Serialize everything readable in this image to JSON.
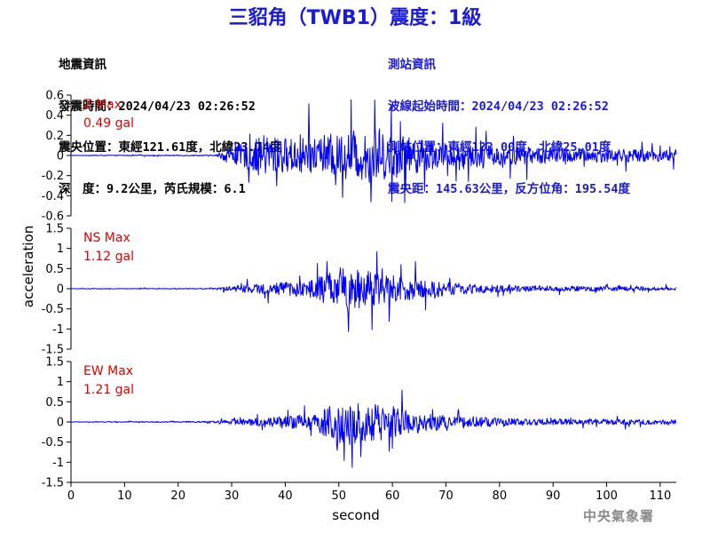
{
  "header": {
    "title": "三貂角（TWB1）震度：1級"
  },
  "quake_info": {
    "heading": "地震資訊",
    "origin_time": "發震時間：2024/04/23 02:26:52",
    "epicenter": "震央位置：東經121.61度，北緯23.74度",
    "depth_magnitude": "深　度：9.2公里，芮氏規模：6.1"
  },
  "station_info": {
    "heading": "測站資訊",
    "wave_start": "波線起始時間：2024/04/23 02:26:52",
    "station_location": "測站位置：東經122.00度，北緯25.01度",
    "distance": "震央距：145.63公里，反方位角：195.54度"
  },
  "footer": {
    "agency": "中央氣象署"
  },
  "colors": {
    "title": "#1a1adc",
    "station_text": "#1a1adc",
    "trace": "#0000ff",
    "max_label": "#e00000",
    "watermark": "#8a8a8a"
  },
  "chart_data": {
    "type": "line",
    "xlabel": "second",
    "ylabel": "acceleration",
    "xlim": [
      0,
      113
    ],
    "xticks": [
      0,
      10,
      20,
      30,
      40,
      50,
      60,
      70,
      80,
      90,
      100,
      110
    ],
    "grid": false,
    "panels": [
      {
        "name": "Z",
        "max_label": "Z Max",
        "max_value": "0.49 gal",
        "ylim": [
          -0.6,
          0.6
        ],
        "yticks": [
          -0.6,
          -0.4,
          -0.2,
          0,
          0.2,
          0.4,
          0.6
        ],
        "ytick_labels": [
          "-0.6",
          "-0.4",
          "-0.2",
          "0",
          "0.2",
          "0.4",
          "0.6"
        ],
        "quiet_until": 27,
        "onset": 30,
        "peak_time": 56,
        "envelope": [
          [
            0,
            0.005
          ],
          [
            27,
            0.01
          ],
          [
            29,
            0.12
          ],
          [
            33,
            0.25
          ],
          [
            36,
            0.38
          ],
          [
            40,
            0.3
          ],
          [
            45,
            0.35
          ],
          [
            50,
            0.38
          ],
          [
            53,
            0.45
          ],
          [
            56,
            0.47
          ],
          [
            60,
            0.38
          ],
          [
            65,
            0.3
          ],
          [
            70,
            0.22
          ],
          [
            80,
            0.18
          ],
          [
            90,
            0.14
          ],
          [
            100,
            0.12
          ],
          [
            113,
            0.1
          ]
        ]
      },
      {
        "name": "NS",
        "max_label": "NS Max",
        "max_value": "1.12 gal",
        "ylim": [
          -1.5,
          1.5
        ],
        "yticks": [
          -1.5,
          -1,
          -0.5,
          0,
          0.5,
          1,
          1.5
        ],
        "ytick_labels": [
          "-1.5",
          "-1",
          "-0.5",
          "0",
          "0.5",
          "1",
          "1.5"
        ],
        "quiet_until": 27,
        "onset": 29,
        "peak_time": 51.8,
        "envelope": [
          [
            0,
            0.01
          ],
          [
            27,
            0.02
          ],
          [
            30,
            0.12
          ],
          [
            35,
            0.22
          ],
          [
            40,
            0.3
          ],
          [
            45,
            0.4
          ],
          [
            48,
            0.7
          ],
          [
            51,
            0.95
          ],
          [
            52,
            1.12
          ],
          [
            55,
            0.85
          ],
          [
            58,
            0.7
          ],
          [
            62,
            0.55
          ],
          [
            66,
            0.4
          ],
          [
            72,
            0.25
          ],
          [
            80,
            0.15
          ],
          [
            90,
            0.12
          ],
          [
            100,
            0.1
          ],
          [
            113,
            0.08
          ]
        ]
      },
      {
        "name": "EW",
        "max_label": "EW Max",
        "max_value": "1.21 gal",
        "ylim": [
          -1.5,
          1.5
        ],
        "yticks": [
          -1.5,
          -1,
          -0.5,
          0,
          0.5,
          1,
          1.5
        ],
        "ytick_labels": [
          "-1.5",
          "-1",
          "-0.5",
          "0",
          "0.5",
          "1",
          "1.5"
        ],
        "quiet_until": 26,
        "onset": 29,
        "peak_time": 52.5,
        "envelope": [
          [
            0,
            0.01
          ],
          [
            26,
            0.03
          ],
          [
            30,
            0.12
          ],
          [
            35,
            0.18
          ],
          [
            40,
            0.25
          ],
          [
            45,
            0.4
          ],
          [
            48,
            0.7
          ],
          [
            50,
            0.95
          ],
          [
            52,
            1.2
          ],
          [
            55,
            0.9
          ],
          [
            58,
            0.75
          ],
          [
            62,
            0.55
          ],
          [
            66,
            0.45
          ],
          [
            70,
            0.3
          ],
          [
            80,
            0.18
          ],
          [
            90,
            0.14
          ],
          [
            100,
            0.12
          ],
          [
            113,
            0.1
          ]
        ]
      }
    ]
  }
}
